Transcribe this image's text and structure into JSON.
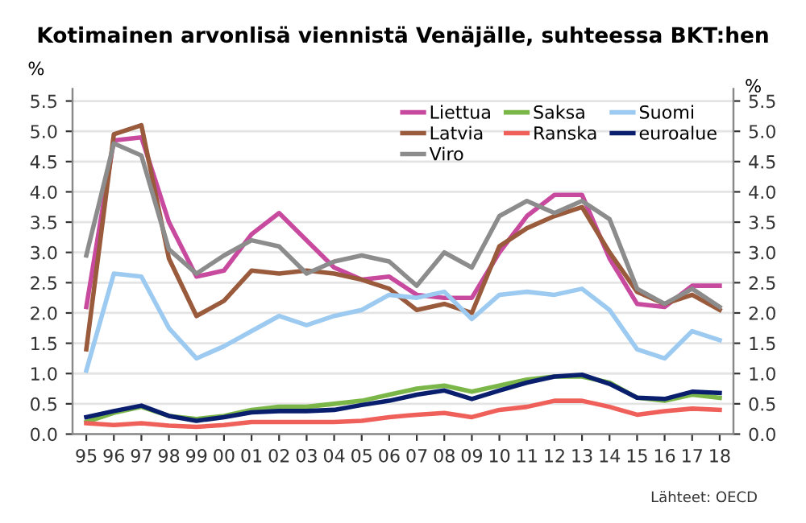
{
  "chart_data": {
    "type": "line",
    "title": "Kotimainen arvonlisä viennistä Venäjälle, suhteessa BKT:hen",
    "ylabel": "%",
    "y2label": "%",
    "categories": [
      "95",
      "96",
      "97",
      "98",
      "99",
      "00",
      "01",
      "02",
      "03",
      "04",
      "05",
      "06",
      "07",
      "08",
      "09",
      "10",
      "11",
      "12",
      "13",
      "14",
      "15",
      "16",
      "17",
      "18"
    ],
    "series": [
      {
        "name": "Liettua",
        "color": "#c84a9e",
        "values": [
          2.1,
          4.85,
          4.9,
          3.5,
          2.6,
          2.7,
          3.3,
          3.65,
          3.2,
          2.75,
          2.55,
          2.6,
          2.3,
          2.25,
          2.25,
          3.0,
          3.6,
          3.95,
          3.95,
          2.9,
          2.15,
          2.1,
          2.45,
          2.45
        ]
      },
      {
        "name": "Latvia",
        "color": "#9a5a3c",
        "values": [
          1.4,
          4.95,
          5.1,
          2.9,
          1.95,
          2.2,
          2.7,
          2.65,
          2.7,
          2.65,
          2.55,
          2.4,
          2.05,
          2.15,
          2.0,
          3.1,
          3.4,
          3.6,
          3.75,
          3.0,
          2.35,
          2.15,
          2.3,
          2.05
        ]
      },
      {
        "name": "Viro",
        "color": "#8c8c8c",
        "values": [
          2.95,
          4.8,
          4.6,
          3.05,
          2.65,
          2.95,
          3.2,
          3.1,
          2.65,
          2.85,
          2.95,
          2.85,
          2.45,
          3.0,
          2.75,
          3.6,
          3.85,
          3.65,
          3.85,
          3.55,
          2.4,
          2.15,
          2.4,
          2.1
        ]
      },
      {
        "name": "Saksa",
        "color": "#7ab648",
        "values": [
          0.2,
          0.35,
          0.45,
          0.3,
          0.25,
          0.3,
          0.4,
          0.45,
          0.45,
          0.5,
          0.55,
          0.65,
          0.75,
          0.8,
          0.7,
          0.8,
          0.9,
          0.95,
          0.95,
          0.85,
          0.6,
          0.55,
          0.65,
          0.6
        ]
      },
      {
        "name": "Ranska",
        "color": "#f0605a",
        "values": [
          0.18,
          0.15,
          0.18,
          0.14,
          0.12,
          0.15,
          0.2,
          0.2,
          0.2,
          0.2,
          0.22,
          0.28,
          0.32,
          0.35,
          0.28,
          0.4,
          0.45,
          0.55,
          0.55,
          0.45,
          0.32,
          0.38,
          0.42,
          0.4
        ]
      },
      {
        "name": "Suomi",
        "color": "#9ccaf0",
        "values": [
          1.05,
          2.65,
          2.6,
          1.75,
          1.25,
          1.45,
          1.7,
          1.95,
          1.8,
          1.95,
          2.05,
          2.3,
          2.25,
          2.35,
          1.9,
          2.3,
          2.35,
          2.3,
          2.4,
          2.05,
          1.4,
          1.25,
          1.7,
          1.55
        ]
      },
      {
        "name": "euroalue",
        "color": "#0a1e6e",
        "values": [
          0.28,
          0.38,
          0.47,
          0.3,
          0.22,
          0.28,
          0.36,
          0.38,
          0.38,
          0.4,
          0.48,
          0.55,
          0.65,
          0.72,
          0.58,
          0.72,
          0.85,
          0.95,
          0.98,
          0.83,
          0.6,
          0.58,
          0.7,
          0.68
        ]
      }
    ],
    "ylim": [
      0,
      5.7
    ],
    "yticks": [
      {
        "value": 0,
        "label": "0.0"
      },
      {
        "value": 0.5,
        "label": "0.5"
      },
      {
        "value": 1,
        "label": "1.0"
      },
      {
        "value": 1.5,
        "label": "1.5"
      },
      {
        "value": 2,
        "label": "2.0"
      },
      {
        "value": 2.5,
        "label": "2.5"
      },
      {
        "value": 3,
        "label": "3.0"
      },
      {
        "value": 3.5,
        "label": "3.5"
      },
      {
        "value": 4,
        "label": "4.0"
      },
      {
        "value": 4.5,
        "label": "4.5"
      },
      {
        "value": 5,
        "label": "5.0"
      },
      {
        "value": 5.5,
        "label": "5.5"
      }
    ],
    "y2lim": [
      0,
      5.7
    ],
    "y2ticks": [
      {
        "value": 0,
        "label": "0.0"
      },
      {
        "value": 0.5,
        "label": "0.5"
      },
      {
        "value": 1,
        "label": "1.0"
      },
      {
        "value": 1.5,
        "label": "1.5"
      },
      {
        "value": 2,
        "label": "2.0"
      },
      {
        "value": 2.5,
        "label": "2.5"
      },
      {
        "value": 3,
        "label": "3.0"
      },
      {
        "value": 3.5,
        "label": "3.5"
      },
      {
        "value": 4,
        "label": "4.0"
      },
      {
        "value": 4.5,
        "label": "4.5"
      },
      {
        "value": 5,
        "label": "5.0"
      },
      {
        "value": 5.5,
        "label": "5.5"
      }
    ],
    "grid": "y",
    "legend": "top right",
    "marker": "none",
    "line_style": "solid",
    "annotations": [
      "Lähteet: OECD"
    ]
  }
}
